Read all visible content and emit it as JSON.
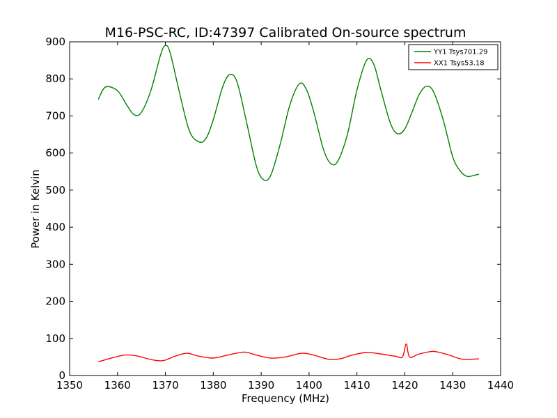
{
  "chart_data": {
    "type": "line",
    "title": "M16-PSC-RC, ID:47397 Calibrated On-source spectrum",
    "xlabel": "Frequency (MHz)",
    "ylabel": "Power in Kelvin",
    "xlim": [
      1350,
      1440
    ],
    "ylim": [
      0,
      900
    ],
    "xticks": [
      1350,
      1360,
      1370,
      1380,
      1390,
      1400,
      1410,
      1420,
      1430,
      1440
    ],
    "yticks": [
      0,
      100,
      200,
      300,
      400,
      500,
      600,
      700,
      800,
      900
    ],
    "grid": false,
    "legend_position": "top-right",
    "colors": {
      "YY1": "#008000",
      "XX1": "#ff0000"
    },
    "series": [
      {
        "name": "YY1 Tsys701.29",
        "color": "#008000",
        "x": [
          1356,
          1357.5,
          1360,
          1362,
          1363.5,
          1365,
          1367,
          1369,
          1370,
          1371,
          1373,
          1375,
          1377,
          1378.5,
          1380,
          1382,
          1383.5,
          1385,
          1387,
          1389,
          1390.5,
          1392,
          1394,
          1396,
          1398,
          1399.5,
          1401,
          1403,
          1404.5,
          1406,
          1408,
          1410,
          1412,
          1413.5,
          1415,
          1417,
          1418.5,
          1420,
          1421.5,
          1423,
          1424.5,
          1426,
          1428,
          1430,
          1431.5,
          1433,
          1434.5,
          1435.5
        ],
        "values": [
          745,
          778,
          768,
          728,
          703,
          710,
          770,
          865,
          890,
          870,
          760,
          660,
          630,
          640,
          690,
          780,
          812,
          790,
          680,
          565,
          528,
          540,
          625,
          730,
          787,
          770,
          710,
          610,
          572,
          578,
          650,
          770,
          850,
          840,
          770,
          680,
          652,
          665,
          710,
          758,
          780,
          765,
          690,
          590,
          553,
          537,
          540,
          543
        ]
      },
      {
        "name": "XX1 Tsys53.18",
        "color": "#ff0000",
        "x": [
          1356,
          1359,
          1361.5,
          1364,
          1367,
          1369.5,
          1372,
          1374.5,
          1377,
          1380,
          1383,
          1386.5,
          1389,
          1392,
          1395,
          1398.5,
          1401,
          1404,
          1406.5,
          1409,
          1412,
          1415,
          1418,
          1419.5,
          1420.3,
          1421,
          1423,
          1426,
          1429,
          1432,
          1435.5
        ],
        "values": [
          37,
          48,
          55,
          53,
          43,
          40,
          52,
          60,
          52,
          47,
          55,
          63,
          55,
          47,
          50,
          60,
          55,
          44,
          45,
          55,
          62,
          58,
          52,
          50,
          85,
          50,
          58,
          65,
          56,
          44,
          45
        ]
      }
    ]
  }
}
